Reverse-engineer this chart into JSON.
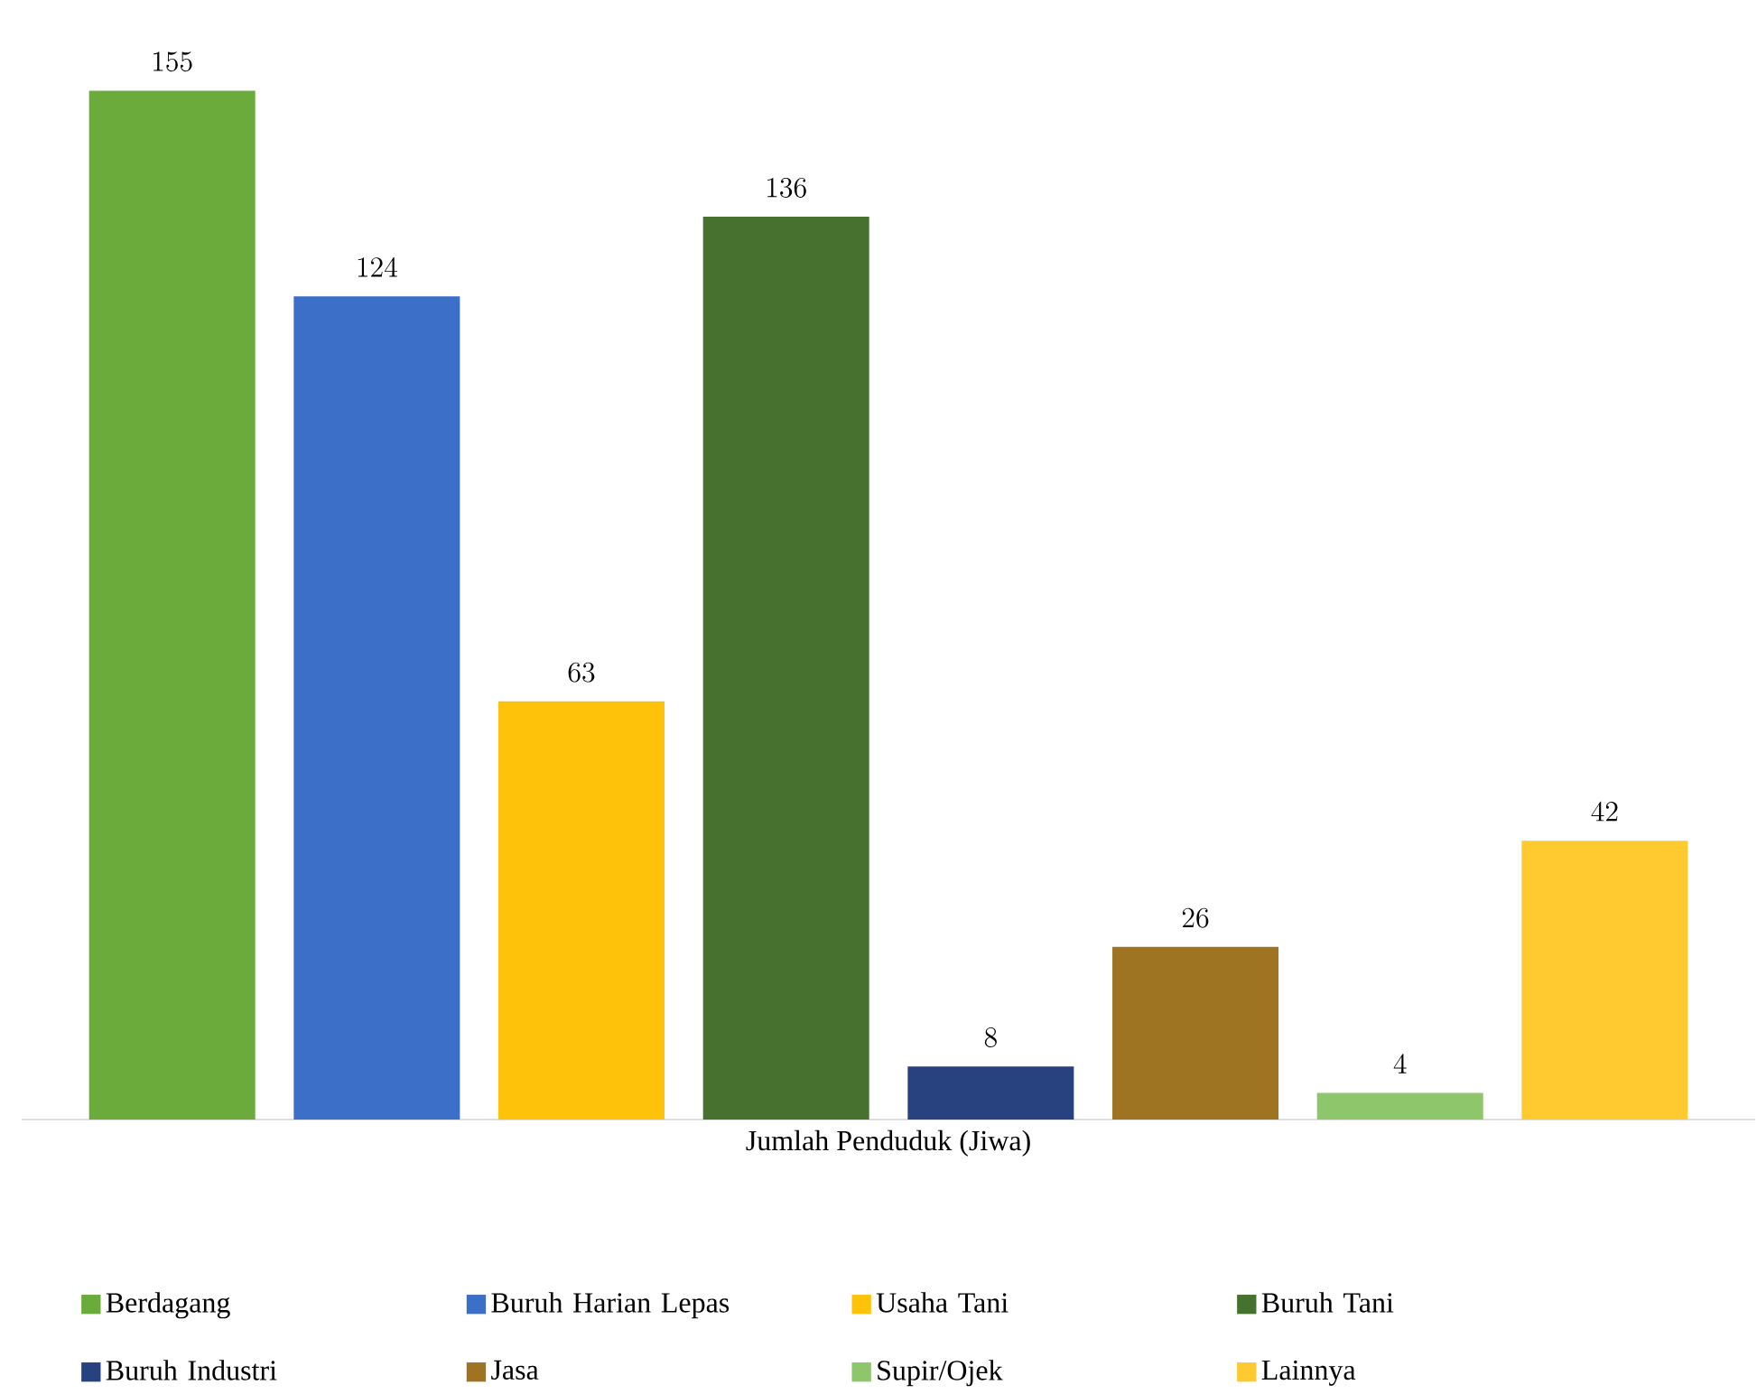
{
  "chart_data": {
    "type": "bar",
    "xlabel": "Jumlah Penduduk (Jiwa)",
    "categories": [
      null
    ],
    "series": [
      {
        "name": "Berdagang",
        "color": "#6aab3c",
        "values": [
          155
        ]
      },
      {
        "name": "Buruh Harian Lepas",
        "color": "#3b6fc8",
        "values": [
          124
        ]
      },
      {
        "name": "Usaha Tani",
        "color": "#ffc20a",
        "values": [
          63
        ]
      },
      {
        "name": "Buruh Tani",
        "color": "#46712e",
        "values": [
          136
        ]
      },
      {
        "name": "Buruh Industri",
        "color": "#27427e",
        "values": [
          8
        ]
      },
      {
        "name": "Jasa",
        "color": "#9e7422",
        "values": [
          26
        ]
      },
      {
        "name": "Supir/Ojek",
        "color": "#8dc66b",
        "values": [
          4
        ]
      },
      {
        "name": "Lainnya",
        "color": "#ffca30",
        "values": [
          42
        ]
      }
    ],
    "data_labels": true,
    "legend": "bottom"
  }
}
